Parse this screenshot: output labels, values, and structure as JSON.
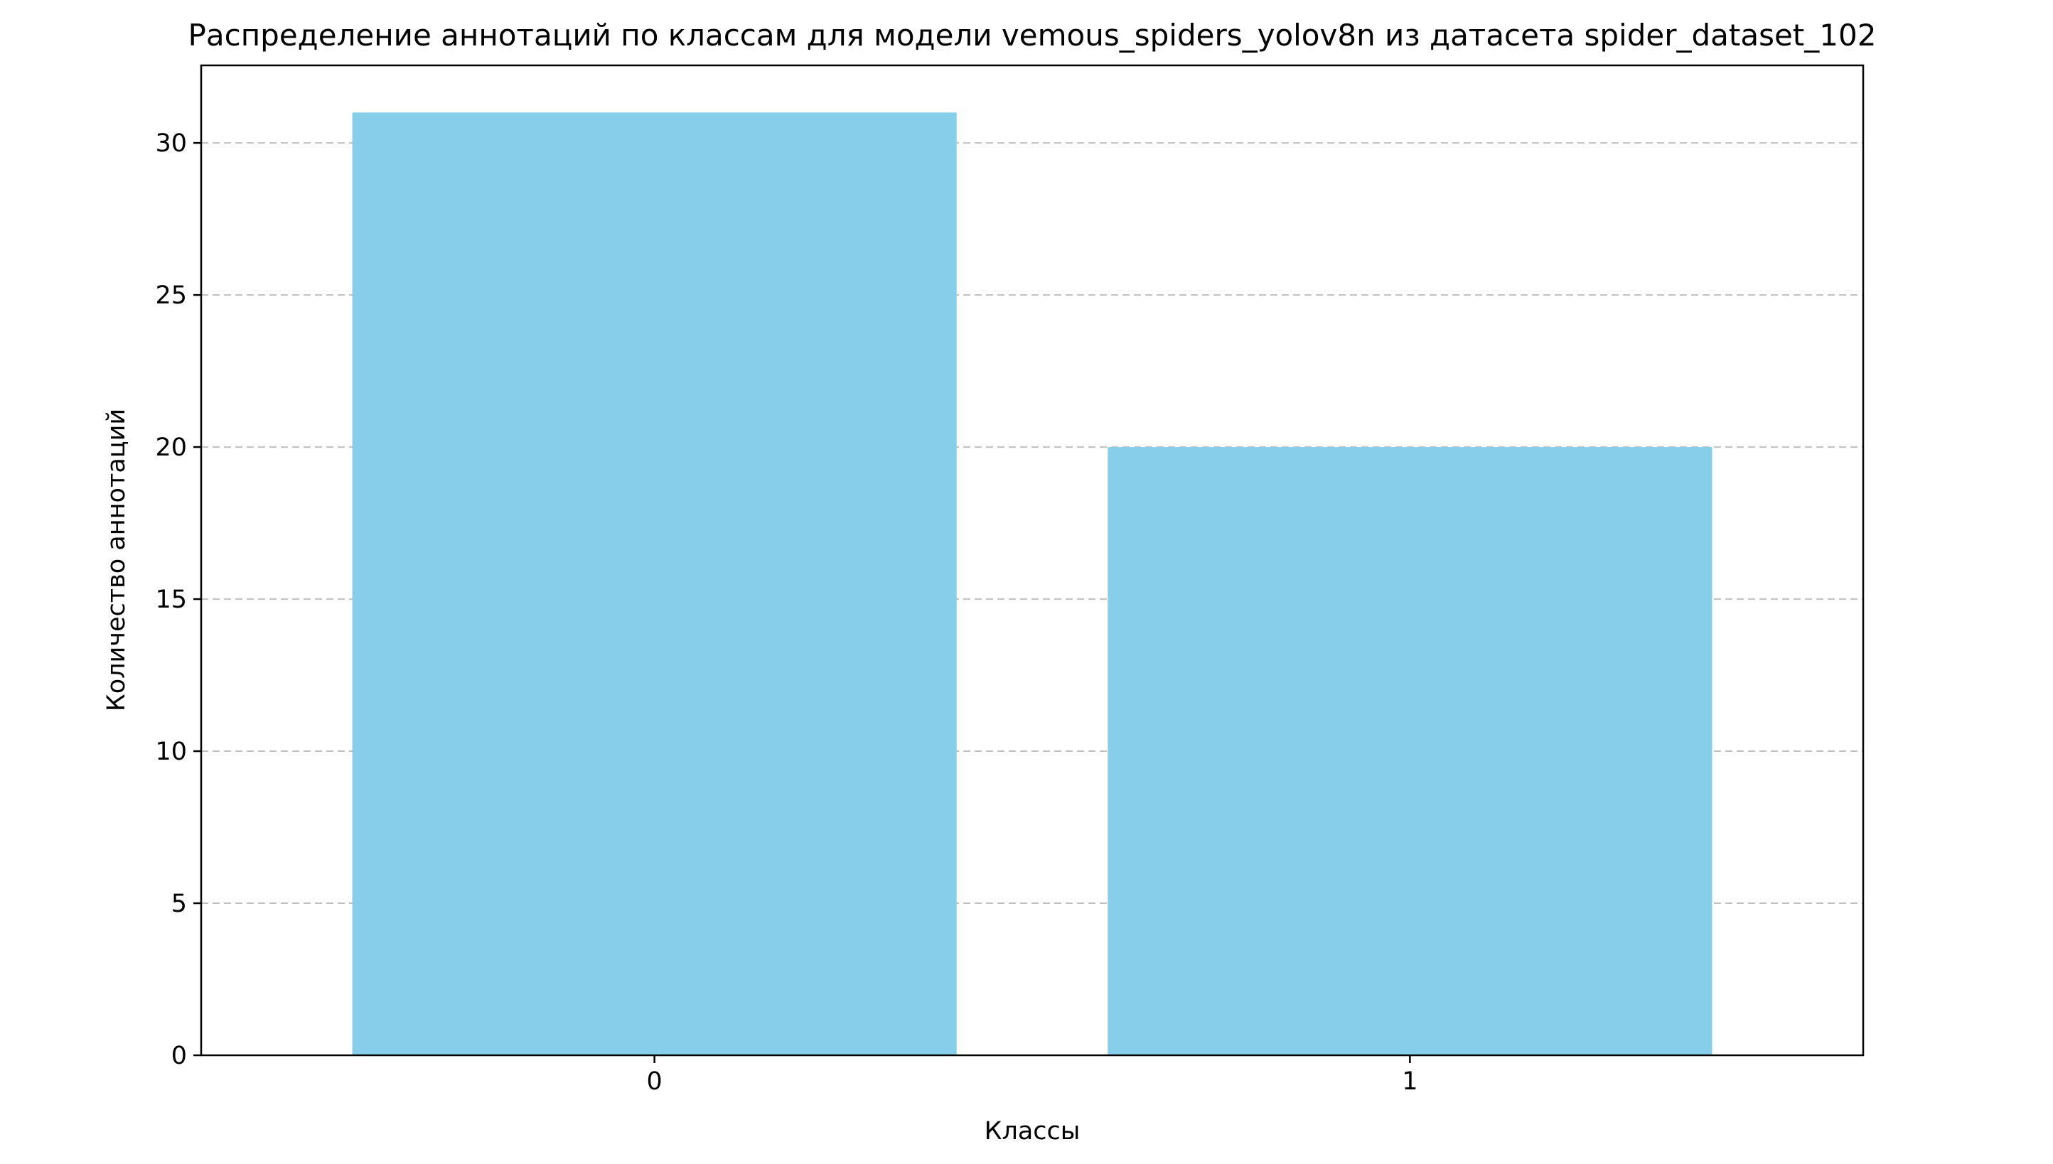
{
  "chart_data": {
    "type": "bar",
    "title": "Распределение аннотаций по классам для модели vemous_spiders_yolov8n из датасета spider_dataset_102",
    "xlabel": "Классы",
    "ylabel": "Количество аннотаций",
    "categories": [
      "0",
      "1"
    ],
    "values": [
      31,
      20
    ],
    "ylim": [
      0,
      32.55
    ],
    "yticks": [
      0,
      5,
      10,
      15,
      20,
      25,
      30
    ],
    "grid": "y-dashed",
    "legend": "none",
    "colors": {
      "bar": "#87ceeb",
      "grid": "#c0c0c0",
      "axis": "#000000"
    }
  }
}
